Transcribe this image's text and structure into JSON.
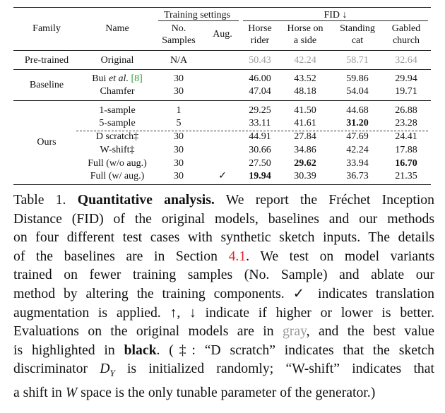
{
  "table": {
    "group_headers": {
      "training_settings": "Training settings",
      "fid": "FID ↓"
    },
    "col_headers": {
      "family": "Family",
      "name": "Name",
      "samples_l1": "No.",
      "samples_l2": "Samples",
      "aug": "Aug.",
      "c1_l1": "Horse",
      "c1_l2": "rider",
      "c2_l1": "Horse on",
      "c2_l2": "a side",
      "c3_l1": "Standing",
      "c3_l2": "cat",
      "c4_l1": "Gabled",
      "c4_l2": "church"
    },
    "families": {
      "pretrained": "Pre-trained",
      "baseline": "Baseline",
      "ours": "Ours"
    },
    "rows": [
      {
        "name": "Original",
        "samples": "N/A",
        "aug": "",
        "v": [
          "50.43",
          "42.24",
          "58.71",
          "32.64"
        ]
      },
      {
        "name_pre": "Bui ",
        "name_it": "et al.",
        "name_ref": "[8]",
        "samples": "30",
        "aug": "",
        "v": [
          "46.00",
          "43.52",
          "59.86",
          "29.94"
        ]
      },
      {
        "name": "Chamfer",
        "samples": "30",
        "aug": "",
        "v": [
          "47.04",
          "48.18",
          "54.04",
          "19.71"
        ]
      },
      {
        "name": "1-sample",
        "samples": "1",
        "aug": "",
        "v": [
          "29.25",
          "41.50",
          "44.68",
          "26.88"
        ]
      },
      {
        "name": "5-sample",
        "samples": "5",
        "aug": "",
        "v": [
          "33.11",
          "41.61",
          "31.20",
          "23.28"
        ]
      },
      {
        "name": "D scratch‡",
        "samples": "30",
        "aug": "",
        "v": [
          "44.91",
          "27.84",
          "47.69",
          "24.41"
        ]
      },
      {
        "name": "W-shift‡",
        "samples": "30",
        "aug": "",
        "v": [
          "30.66",
          "34.86",
          "42.24",
          "17.88"
        ]
      },
      {
        "name": "Full (w/o aug.)",
        "samples": "30",
        "aug": "",
        "v": [
          "27.50",
          "29.62",
          "33.94",
          "16.70"
        ]
      },
      {
        "name": "Full (w/ aug.)",
        "samples": "30",
        "aug": "✓",
        "v": [
          "19.94",
          "30.39",
          "36.73",
          "21.35"
        ]
      }
    ]
  },
  "caption": {
    "label": "Table 1.",
    "title": "Quantitative analysis.",
    "s1": "We report the Fréchet Inception",
    "l2": "Distance (FID) of the original models, baselines and our methods",
    "l3": "on four different test cases with synthetic sketch inputs. The details",
    "l4a": "of the baselines are in Section",
    "l4ref": "4.1",
    "l4b": ". We test on model variants",
    "l5": "trained on fewer training samples (No. Sample) and ablate our",
    "l6": "method by altering the training components. ✓ indicates translation",
    "l7": "augmentation is applied. ↑, ↓ indicate if higher or lower is better.",
    "l8a": "Evaluations on the original models are in",
    "l8gray": "gray",
    "l8b": ", and the best value",
    "l9a": "is highlighted in",
    "l9bold": "black",
    "l9b": ". (‡: “D scratch” indicates that the sketch",
    "l10a": "discriminator",
    "l10sym": "D",
    "l10sub": "Y",
    "l10b": "is initialized randomly; “W-shift” indicates that",
    "l11a": "a shift in",
    "l11sym": "W",
    "l11b": "space is the only tunable parameter of the generator.)"
  }
}
